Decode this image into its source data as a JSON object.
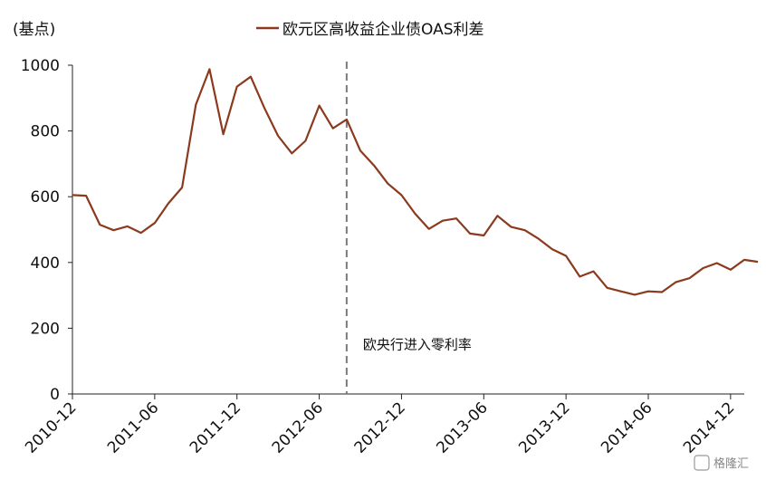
{
  "chart_data": {
    "type": "line",
    "unit_label": "(基点)",
    "legend_position": "top",
    "grid": false,
    "ylim": [
      0,
      1000
    ],
    "yticks": [
      0,
      200,
      400,
      600,
      800,
      1000
    ],
    "xlim": [
      "2010-12",
      "2015-01"
    ],
    "xticks": [
      "2010-12",
      "2011-06",
      "2011-12",
      "2012-06",
      "2012-12",
      "2013-06",
      "2013-12",
      "2014-06",
      "2014-12"
    ],
    "series": [
      {
        "name": "欧元区高收益企业债OAS利差",
        "color": "#8B3A1E",
        "points": [
          [
            "2010-12",
            605
          ],
          [
            "2011-01",
            603
          ],
          [
            "2011-02",
            515
          ],
          [
            "2011-03",
            498
          ],
          [
            "2011-04",
            510
          ],
          [
            "2011-05",
            490
          ],
          [
            "2011-06",
            520
          ],
          [
            "2011-07",
            580
          ],
          [
            "2011-08",
            628
          ],
          [
            "2011-09",
            880
          ],
          [
            "2011-10",
            988
          ],
          [
            "2011-11",
            790
          ],
          [
            "2011-12",
            935
          ],
          [
            "2012-01",
            965
          ],
          [
            "2012-02",
            870
          ],
          [
            "2012-03",
            785
          ],
          [
            "2012-04",
            732
          ],
          [
            "2012-05",
            770
          ],
          [
            "2012-06",
            877
          ],
          [
            "2012-07",
            808
          ],
          [
            "2012-08",
            835
          ],
          [
            "2012-09",
            740
          ],
          [
            "2012-10",
            695
          ],
          [
            "2012-11",
            640
          ],
          [
            "2012-12",
            605
          ],
          [
            "2013-01",
            548
          ],
          [
            "2013-02",
            502
          ],
          [
            "2013-03",
            527
          ],
          [
            "2013-04",
            534
          ],
          [
            "2013-05",
            488
          ],
          [
            "2013-06",
            482
          ],
          [
            "2013-07",
            542
          ],
          [
            "2013-08",
            508
          ],
          [
            "2013-09",
            498
          ],
          [
            "2013-10",
            472
          ],
          [
            "2013-11",
            440
          ],
          [
            "2013-12",
            420
          ],
          [
            "2014-01",
            357
          ],
          [
            "2014-02",
            373
          ],
          [
            "2014-03",
            323
          ],
          [
            "2014-04",
            312
          ],
          [
            "2014-05",
            302
          ],
          [
            "2014-06",
            312
          ],
          [
            "2014-07",
            310
          ],
          [
            "2014-08",
            340
          ],
          [
            "2014-09",
            352
          ],
          [
            "2014-10",
            383
          ],
          [
            "2014-11",
            398
          ],
          [
            "2014-12",
            378
          ],
          [
            "2015-01",
            408
          ],
          [
            "2015-02",
            402
          ]
        ]
      }
    ],
    "annotations": [
      {
        "type": "vline",
        "x": "2012-08",
        "style": "dashed",
        "label": "欧央行进入零利率",
        "label_y": 150
      }
    ]
  },
  "watermark": {
    "text": "格隆汇"
  }
}
